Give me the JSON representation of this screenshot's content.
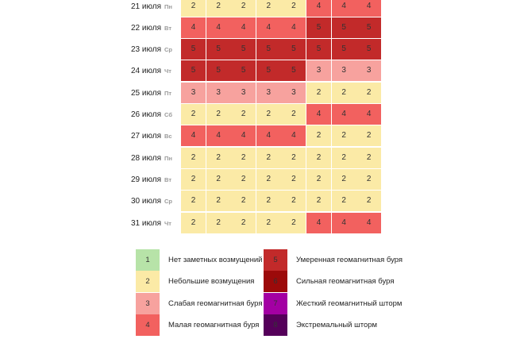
{
  "colors": {
    "1": "#b7e3a8",
    "2": "#fbeaa6",
    "3": "#f7a29e",
    "4": "#f2615f",
    "5": "#c22a2a",
    "6": "#9c0a0a",
    "7": "#a300a3",
    "8": "#55005a"
  },
  "forecast": {
    "rows": [
      {
        "date": "21 июля",
        "dow": "Пн",
        "values": [
          2,
          2,
          2,
          2,
          2,
          4,
          4,
          4
        ]
      },
      {
        "date": "22 июля",
        "dow": "Вт",
        "values": [
          4,
          4,
          4,
          4,
          4,
          5,
          5,
          5
        ]
      },
      {
        "date": "23 июля",
        "dow": "Ср",
        "values": [
          5,
          5,
          5,
          5,
          5,
          5,
          5,
          5
        ]
      },
      {
        "date": "24 июля",
        "dow": "Чт",
        "values": [
          5,
          5,
          5,
          5,
          5,
          3,
          3,
          3
        ]
      },
      {
        "date": "25 июля",
        "dow": "Пт",
        "values": [
          3,
          3,
          3,
          3,
          3,
          2,
          2,
          2
        ]
      },
      {
        "date": "26 июля",
        "dow": "Сб",
        "values": [
          2,
          2,
          2,
          2,
          2,
          4,
          4,
          4
        ]
      },
      {
        "date": "27 июля",
        "dow": "Вс",
        "values": [
          4,
          4,
          4,
          4,
          4,
          2,
          2,
          2
        ]
      },
      {
        "date": "28 июля",
        "dow": "Пн",
        "values": [
          2,
          2,
          2,
          2,
          2,
          2,
          2,
          2
        ]
      },
      {
        "date": "29 июля",
        "dow": "Вт",
        "values": [
          2,
          2,
          2,
          2,
          2,
          2,
          2,
          2
        ]
      },
      {
        "date": "30 июля",
        "dow": "Ср",
        "values": [
          2,
          2,
          2,
          2,
          2,
          2,
          2,
          2
        ]
      },
      {
        "date": "31 июля",
        "dow": "Чт",
        "values": [
          2,
          2,
          2,
          2,
          2,
          4,
          4,
          4
        ]
      }
    ]
  },
  "legend": {
    "items": [
      {
        "level": "1",
        "label": "Нет заметных возмущений"
      },
      {
        "level": "2",
        "label": "Небольшие возмущения"
      },
      {
        "level": "3",
        "label": "Слабая геомагнитная буря"
      },
      {
        "level": "4",
        "label": "Малая геомагнитная буря"
      },
      {
        "level": "5",
        "label": "Умеренная геомагнитная буря"
      },
      {
        "level": "6",
        "label": "Сильная геомагнитная буря"
      },
      {
        "level": "7",
        "label": "Жесткий геомагнитный шторм"
      },
      {
        "level": "8",
        "label": "Экстремальный шторм"
      }
    ]
  }
}
